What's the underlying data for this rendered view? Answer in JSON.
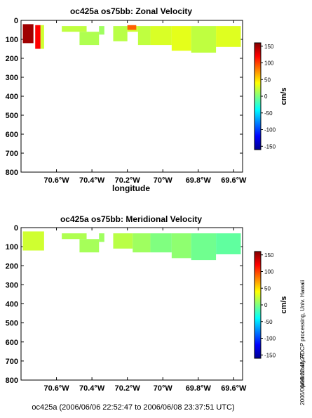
{
  "chart_data": [
    {
      "type": "heatmap",
      "title": "oc425a os75bb: Zonal Velocity",
      "xlabel": "longitude",
      "ylabel": "",
      "xlim": [
        -70.8,
        -69.55
      ],
      "ylim": [
        0,
        800
      ],
      "y_inverted": true,
      "x_ticks": [
        -70.6,
        -70.4,
        -70.2,
        -70.0,
        -69.8,
        -69.6
      ],
      "x_tick_labels": [
        "70.6°W",
        "70.4°W",
        "70.2°W",
        "70°W",
        "69.8°W",
        "69.6°W"
      ],
      "y_ticks": [
        0,
        100,
        200,
        300,
        400,
        500,
        600,
        700,
        800
      ],
      "colorbar": {
        "label": "cm/s",
        "vmin": -160,
        "vmax": 160,
        "ticks": [
          150,
          100,
          50,
          0,
          -50,
          -100,
          -150
        ]
      },
      "cells": [
        {
          "lon": [
            -70.79,
            -70.73
          ],
          "depth": [
            20,
            120
          ],
          "value": 150
        },
        {
          "lon": [
            -70.72,
            -70.69
          ],
          "depth": [
            25,
            150
          ],
          "value": 120
        },
        {
          "lon": [
            -70.69,
            -70.67
          ],
          "depth": [
            25,
            150
          ],
          "value": 25
        },
        {
          "lon": [
            -70.57,
            -70.43
          ],
          "depth": [
            30,
            60
          ],
          "value": 20
        },
        {
          "lon": [
            -70.47,
            -70.36
          ],
          "depth": [
            60,
            130
          ],
          "value": 15
        },
        {
          "lon": [
            -70.36,
            -70.33
          ],
          "depth": [
            30,
            75
          ],
          "value": 10
        },
        {
          "lon": [
            -70.28,
            -70.2
          ],
          "depth": [
            30,
            110
          ],
          "value": 18
        },
        {
          "lon": [
            -70.2,
            -70.14
          ],
          "depth": [
            30,
            60
          ],
          "value": 25
        },
        {
          "lon": [
            -70.2,
            -70.15
          ],
          "depth": [
            25,
            50
          ],
          "value": 90
        },
        {
          "lon": [
            -70.14,
            -70.07
          ],
          "depth": [
            30,
            130
          ],
          "value": 20
        },
        {
          "lon": [
            -70.07,
            -69.95
          ],
          "depth": [
            30,
            130
          ],
          "value": 28
        },
        {
          "lon": [
            -69.95,
            -69.84
          ],
          "depth": [
            30,
            160
          ],
          "value": 32
        },
        {
          "lon": [
            -69.84,
            -69.7
          ],
          "depth": [
            30,
            170
          ],
          "value": 20
        },
        {
          "lon": [
            -69.7,
            -69.56
          ],
          "depth": [
            30,
            140
          ],
          "value": 30
        }
      ]
    },
    {
      "type": "heatmap",
      "title": "oc425a os75bb: Meridional Velocity",
      "xlabel": "",
      "ylabel": "",
      "xlim": [
        -70.8,
        -69.55
      ],
      "ylim": [
        0,
        800
      ],
      "y_inverted": true,
      "x_ticks": [
        -70.6,
        -70.4,
        -70.2,
        -70.0,
        -69.8,
        -69.6
      ],
      "x_tick_labels": [
        "70.6°W",
        "70.4°W",
        "70.2°W",
        "70°W",
        "69.8°W",
        "69.6°W"
      ],
      "y_ticks": [
        0,
        100,
        200,
        300,
        400,
        500,
        600,
        700,
        800
      ],
      "colorbar": {
        "label": "cm/s",
        "vmin": -160,
        "vmax": 160,
        "ticks": [
          150,
          100,
          50,
          0,
          -50,
          -100,
          -150
        ]
      },
      "cells": [
        {
          "lon": [
            -70.79,
            -70.67
          ],
          "depth": [
            20,
            120
          ],
          "value": 25
        },
        {
          "lon": [
            -70.57,
            -70.43
          ],
          "depth": [
            30,
            60
          ],
          "value": 15
        },
        {
          "lon": [
            -70.47,
            -70.36
          ],
          "depth": [
            60,
            130
          ],
          "value": 12
        },
        {
          "lon": [
            -70.36,
            -70.33
          ],
          "depth": [
            30,
            75
          ],
          "value": 10
        },
        {
          "lon": [
            -70.28,
            -70.17
          ],
          "depth": [
            30,
            110
          ],
          "value": 18
        },
        {
          "lon": [
            -70.17,
            -70.07
          ],
          "depth": [
            30,
            130
          ],
          "value": 10
        },
        {
          "lon": [
            -70.07,
            -69.95
          ],
          "depth": [
            30,
            130
          ],
          "value": 0
        },
        {
          "lon": [
            -69.95,
            -69.84
          ],
          "depth": [
            30,
            160
          ],
          "value": 5
        },
        {
          "lon": [
            -69.84,
            -69.7
          ],
          "depth": [
            30,
            170
          ],
          "value": -5
        },
        {
          "lon": [
            -69.7,
            -69.56
          ],
          "depth": [
            30,
            140
          ],
          "value": -10
        }
      ]
    }
  ],
  "footer": "oc425a (2006/06/06 22:52:47 to 2006/06/08 23:37:51 UTC)",
  "side_note": "preliminary ADCP processing,   Univ. Hawaii",
  "side_date": "2006/06/08 23:43:27"
}
